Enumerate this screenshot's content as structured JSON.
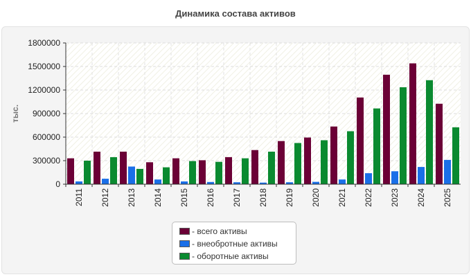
{
  "chart_data": {
    "type": "bar",
    "title": "Динамика состава активов",
    "ylabel": "тыс.",
    "xlabel": "",
    "ylim": [
      0,
      1800000
    ],
    "yticks": [
      "0",
      "300000",
      "600000",
      "900000",
      "1200000",
      "1500000",
      "1800000"
    ],
    "grid": true,
    "legend_position": "bottom-center",
    "categories": [
      "2011",
      "2012",
      "2013",
      "2014",
      "2015",
      "2016",
      "2017",
      "2018",
      "2019",
      "2020",
      "2021",
      "2022",
      "2023",
      "2024",
      "2025"
    ],
    "series": [
      {
        "name": "всего активы",
        "color": "#6b0036",
        "values": [
          330000,
          415000,
          415000,
          280000,
          330000,
          305000,
          345000,
          435000,
          550000,
          595000,
          735000,
          1105000,
          1395000,
          1540000,
          1025000
        ]
      },
      {
        "name": "внеобротные активы",
        "color": "#1a6fe8",
        "values": [
          35000,
          70000,
          225000,
          60000,
          35000,
          28000,
          25000,
          20000,
          25000,
          30000,
          60000,
          140000,
          165000,
          220000,
          310000
        ]
      },
      {
        "name": "оборотные активы",
        "color": "#0a8a30",
        "values": [
          300000,
          345000,
          195000,
          215000,
          295000,
          285000,
          330000,
          415000,
          525000,
          560000,
          675000,
          965000,
          1235000,
          1325000,
          725000
        ]
      }
    ]
  }
}
